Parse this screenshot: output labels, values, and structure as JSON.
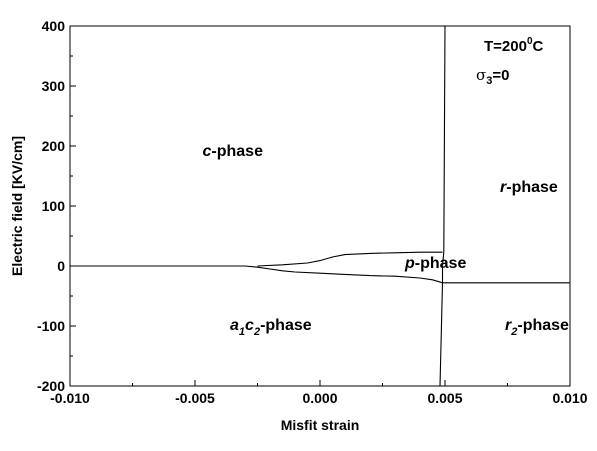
{
  "chart_data": {
    "type": "line",
    "title": "",
    "xlabel": "Misfit strain",
    "ylabel": "Electric field  [KV/cm]",
    "xlim": [
      -0.01,
      0.01
    ],
    "ylim": [
      -200,
      400
    ],
    "xticks": [
      "-0.010",
      "-0.005",
      "0.000",
      "0.005",
      "0.010"
    ],
    "xtick_values": [
      -0.01,
      -0.005,
      0.0,
      0.005,
      0.01
    ],
    "yticks": [
      "-200",
      "-100",
      "0",
      "100",
      "200",
      "300",
      "400"
    ],
    "ytick_values": [
      -200,
      -100,
      0,
      100,
      200,
      300,
      400
    ],
    "grid": false,
    "annotations": {
      "conditions": {
        "temperature": "T=200",
        "temperature_sup": "0",
        "temperature_unit": "C",
        "stress_symbol": "σ",
        "stress_sub": "3",
        "stress_value": "=0"
      },
      "c_phase": {
        "italic": "c",
        "text": "-phase",
        "x": -0.0047,
        "y": 183
      },
      "p_phase": {
        "italic": "p",
        "text": "-phase",
        "x": 0.0034,
        "y": -3
      },
      "r_phase": {
        "italic": "r",
        "text": "-phase",
        "x": 0.0072,
        "y": 123
      },
      "r2_phase": {
        "italic": "r",
        "sub": "2",
        "text": "-phase",
        "x": 0.0074,
        "y": -107
      },
      "a1c2_phase": {
        "a": "a",
        "a_sub": "1",
        "c": "c",
        "c_sub": "2",
        "text": "-phase",
        "x": -0.0036,
        "y": -107
      }
    },
    "series": [
      {
        "id": "lower-boundary",
        "x": [
          -0.01,
          -0.005,
          -0.003,
          -0.0025,
          -0.002,
          -0.0015,
          -0.001,
          0.0,
          0.001,
          0.002,
          0.003,
          0.004,
          0.0045,
          0.0049,
          0.01
        ],
        "y": [
          0,
          0,
          0,
          -2,
          -5,
          -8,
          -10,
          -12,
          -14,
          -16,
          -17,
          -20,
          -23,
          -28,
          -28
        ]
      },
      {
        "id": "upper-boundary",
        "x": [
          -0.0025,
          -0.0015,
          -0.0005,
          0.0,
          0.0005,
          0.001,
          0.002,
          0.003,
          0.004,
          0.0049
        ],
        "y": [
          0,
          2,
          5,
          9,
          15,
          19,
          21,
          22,
          23,
          23
        ]
      },
      {
        "id": "vertical-boundary",
        "x": [
          0.0048,
          0.0049,
          0.0049,
          0.00495,
          0.005
        ],
        "y": [
          -200,
          -28,
          0,
          23,
          400
        ]
      }
    ]
  }
}
